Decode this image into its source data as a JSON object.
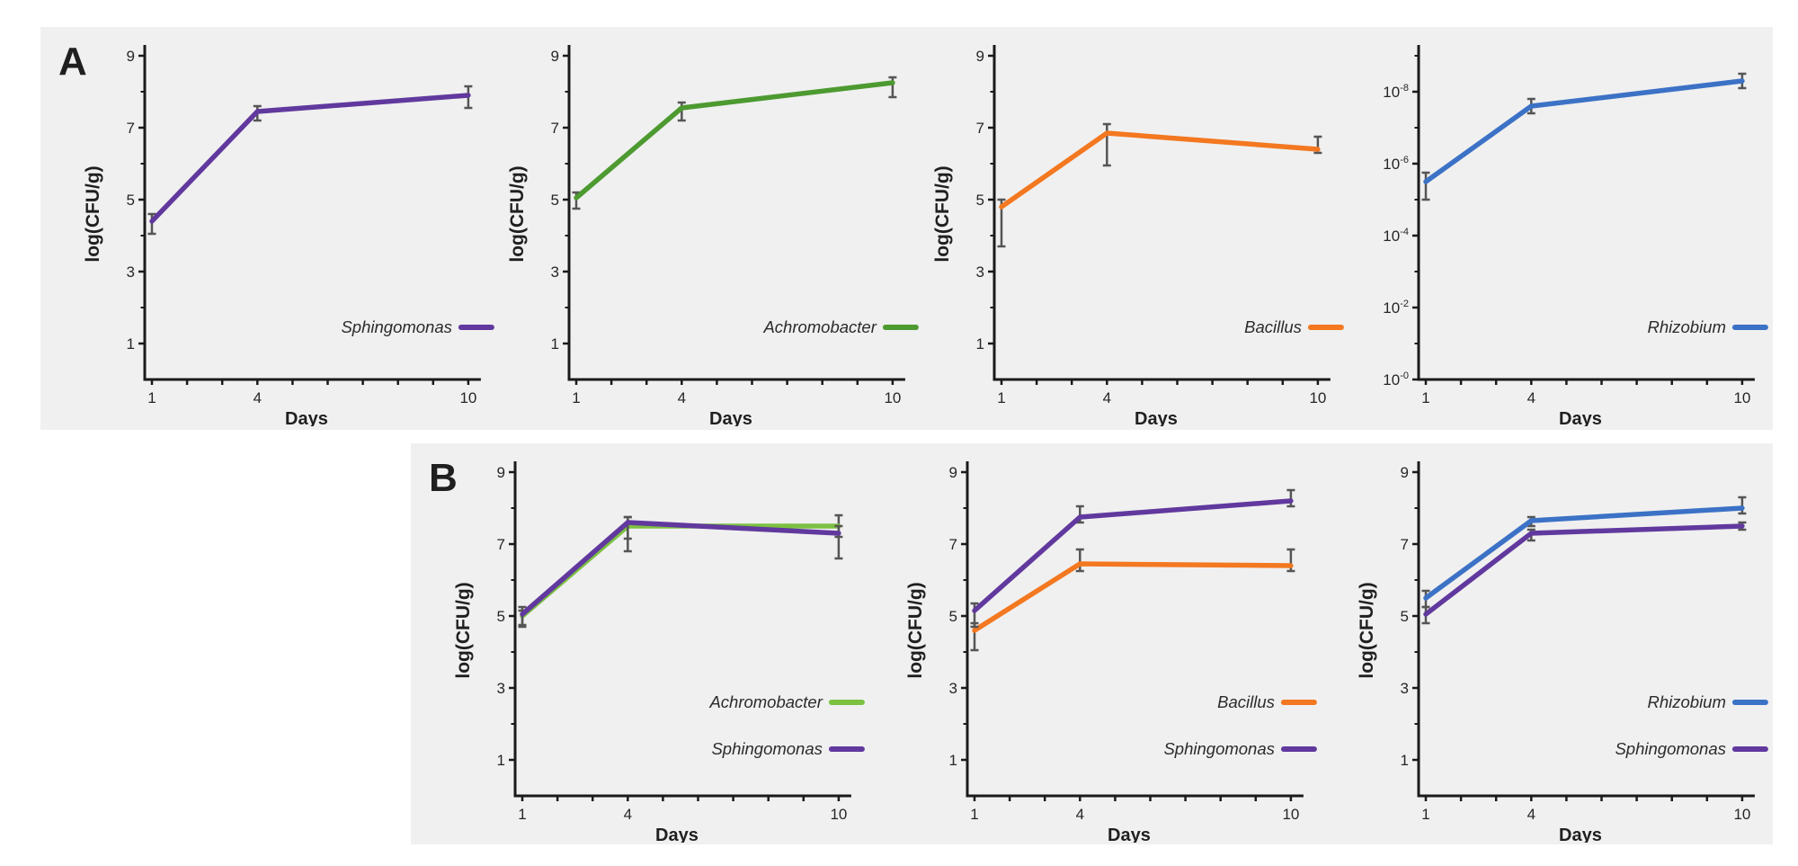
{
  "panels": {
    "A": {
      "label": "A"
    },
    "B": {
      "label": "B"
    }
  },
  "axis": {
    "xlabel": "Days",
    "ylabel": "log(CFU/g)",
    "x_tick_labels": [
      "1",
      "4",
      "10"
    ],
    "x_labeled_days": [
      1,
      4,
      10
    ]
  },
  "colors": {
    "purple": "#61399E",
    "dark_green": "#4D9A31",
    "light_green": "#7CC142",
    "orange": "#F37820",
    "blue": "#3C72C6",
    "error_bar": "#555555",
    "axis": "#1a1a1a",
    "panel_background": "#f0f0f0"
  },
  "chart_data": [
    {
      "panel": "A",
      "id": "a1",
      "type": "line",
      "x": [
        1,
        4,
        10
      ],
      "xlabel": "Days",
      "ylabel": "log(CFU/g)",
      "ylim": [
        0,
        9.3
      ],
      "yticks": [
        {
          "v": 1,
          "label": "1"
        },
        {
          "v": 3,
          "label": "3"
        },
        {
          "v": 5,
          "label": "5"
        },
        {
          "v": 7,
          "label": "7"
        },
        {
          "v": 9,
          "label": "9"
        }
      ],
      "yminor": [
        2,
        4,
        6,
        8
      ],
      "legend_position": "lower right",
      "series": [
        {
          "name": "Sphingomonas",
          "color": "#61399E",
          "values": [
            4.4,
            7.45,
            7.9
          ],
          "err_lo": [
            0.35,
            0.25,
            0.35
          ],
          "err_hi": [
            0.2,
            0.15,
            0.25
          ]
        }
      ]
    },
    {
      "panel": "A",
      "id": "a2",
      "type": "line",
      "x": [
        1,
        4,
        10
      ],
      "xlabel": "Days",
      "ylabel": "log(CFU/g)",
      "ylim": [
        0,
        9.3
      ],
      "yticks": [
        {
          "v": 1,
          "label": "1"
        },
        {
          "v": 3,
          "label": "3"
        },
        {
          "v": 5,
          "label": "5"
        },
        {
          "v": 7,
          "label": "7"
        },
        {
          "v": 9,
          "label": "9"
        }
      ],
      "yminor": [
        2,
        4,
        6,
        8
      ],
      "legend_position": "lower right",
      "series": [
        {
          "name": "Achromobacter",
          "color": "#4D9A31",
          "values": [
            5.05,
            7.55,
            8.25
          ],
          "err_lo": [
            0.3,
            0.35,
            0.4
          ],
          "err_hi": [
            0.15,
            0.15,
            0.15
          ]
        }
      ]
    },
    {
      "panel": "A",
      "id": "a3",
      "type": "line",
      "x": [
        1,
        4,
        10
      ],
      "xlabel": "Days",
      "ylabel": "log(CFU/g)",
      "ylim": [
        0,
        9.3
      ],
      "yticks": [
        {
          "v": 1,
          "label": "1"
        },
        {
          "v": 3,
          "label": "3"
        },
        {
          "v": 5,
          "label": "5"
        },
        {
          "v": 7,
          "label": "7"
        },
        {
          "v": 9,
          "label": "9"
        }
      ],
      "yminor": [
        2,
        4,
        6,
        8
      ],
      "legend_position": "lower right",
      "series": [
        {
          "name": "Bacillus",
          "color": "#F37820",
          "values": [
            4.8,
            6.85,
            6.4
          ],
          "err_lo": [
            1.1,
            0.9,
            0.1
          ],
          "err_hi": [
            0.2,
            0.25,
            0.35
          ]
        }
      ]
    },
    {
      "panel": "A",
      "id": "a4",
      "type": "line",
      "x": [
        1,
        4,
        10
      ],
      "xlabel": "Days",
      "ylabel": "",
      "ylim": [
        0,
        9.3
      ],
      "yticks": [
        {
          "v": 0,
          "label": "10",
          "sup": "-0"
        },
        {
          "v": 2,
          "label": "10",
          "sup": "-2"
        },
        {
          "v": 4,
          "label": "10",
          "sup": "-4"
        },
        {
          "v": 6,
          "label": "10",
          "sup": "-6"
        },
        {
          "v": 8,
          "label": "10",
          "sup": "-8"
        }
      ],
      "yminor": [
        1,
        3,
        5,
        7,
        9
      ],
      "legend_position": "lower right",
      "series": [
        {
          "name": "Rhizobium",
          "color": "#3C72C6",
          "values": [
            5.5,
            7.6,
            8.3
          ],
          "err_lo": [
            0.5,
            0.2,
            0.2
          ],
          "err_hi": [
            0.25,
            0.2,
            0.2
          ]
        }
      ]
    },
    {
      "panel": "B",
      "id": "b1",
      "type": "line",
      "x": [
        1,
        4,
        10
      ],
      "xlabel": "Days",
      "ylabel": "log(CFU/g)",
      "ylim": [
        0,
        9.3
      ],
      "yticks": [
        {
          "v": 1,
          "label": "1"
        },
        {
          "v": 3,
          "label": "3"
        },
        {
          "v": 5,
          "label": "5"
        },
        {
          "v": 7,
          "label": "7"
        },
        {
          "v": 9,
          "label": "9"
        }
      ],
      "yminor": [
        2,
        4,
        6,
        8
      ],
      "legend_position": "lower right",
      "series": [
        {
          "name": "Achromobacter",
          "color": "#7CC142",
          "values": [
            5.0,
            7.5,
            7.5
          ],
          "err_lo": [
            0.3,
            0.7,
            0.3
          ],
          "err_hi": [
            0.15,
            0.25,
            0.3
          ]
        },
        {
          "name": "Sphingomonas",
          "color": "#61399E",
          "values": [
            5.05,
            7.6,
            7.3
          ],
          "err_lo": [
            0.3,
            0.45,
            0.7
          ],
          "err_hi": [
            0.2,
            0.15,
            0.2
          ]
        }
      ]
    },
    {
      "panel": "B",
      "id": "b2",
      "type": "line",
      "x": [
        1,
        4,
        10
      ],
      "xlabel": "Days",
      "ylabel": "log(CFU/g)",
      "ylim": [
        0,
        9.3
      ],
      "yticks": [
        {
          "v": 1,
          "label": "1"
        },
        {
          "v": 3,
          "label": "3"
        },
        {
          "v": 5,
          "label": "5"
        },
        {
          "v": 7,
          "label": "7"
        },
        {
          "v": 9,
          "label": "9"
        }
      ],
      "yminor": [
        2,
        4,
        6,
        8
      ],
      "legend_position": "lower right",
      "series": [
        {
          "name": "Bacillus",
          "color": "#F37820",
          "values": [
            4.6,
            6.45,
            6.4
          ],
          "err_lo": [
            0.55,
            0.2,
            0.15
          ],
          "err_hi": [
            0.2,
            0.4,
            0.45
          ]
        },
        {
          "name": "Sphingomonas",
          "color": "#61399E",
          "values": [
            5.15,
            7.75,
            8.2
          ],
          "err_lo": [
            0.45,
            0.15,
            0.15
          ],
          "err_hi": [
            0.2,
            0.3,
            0.3
          ]
        }
      ]
    },
    {
      "panel": "B",
      "id": "b3",
      "type": "line",
      "x": [
        1,
        4,
        10
      ],
      "xlabel": "Days",
      "ylabel": "log(CFU/g)",
      "ylim": [
        0,
        9.3
      ],
      "yticks": [
        {
          "v": 1,
          "label": "1"
        },
        {
          "v": 3,
          "label": "3"
        },
        {
          "v": 5,
          "label": "5"
        },
        {
          "v": 7,
          "label": "7"
        },
        {
          "v": 9,
          "label": "9"
        }
      ],
      "yminor": [
        2,
        4,
        6,
        8
      ],
      "legend_position": "lower right",
      "series": [
        {
          "name": "Rhizobium",
          "color": "#3C72C6",
          "values": [
            5.5,
            7.65,
            8.0
          ],
          "err_lo": [
            0.25,
            0.15,
            0.15
          ],
          "err_hi": [
            0.2,
            0.1,
            0.3
          ]
        },
        {
          "name": "Sphingomonas",
          "color": "#61399E",
          "values": [
            5.05,
            7.3,
            7.5
          ],
          "err_lo": [
            0.25,
            0.2,
            0.1
          ],
          "err_hi": [
            0.2,
            0.1,
            0.1
          ]
        }
      ]
    }
  ]
}
